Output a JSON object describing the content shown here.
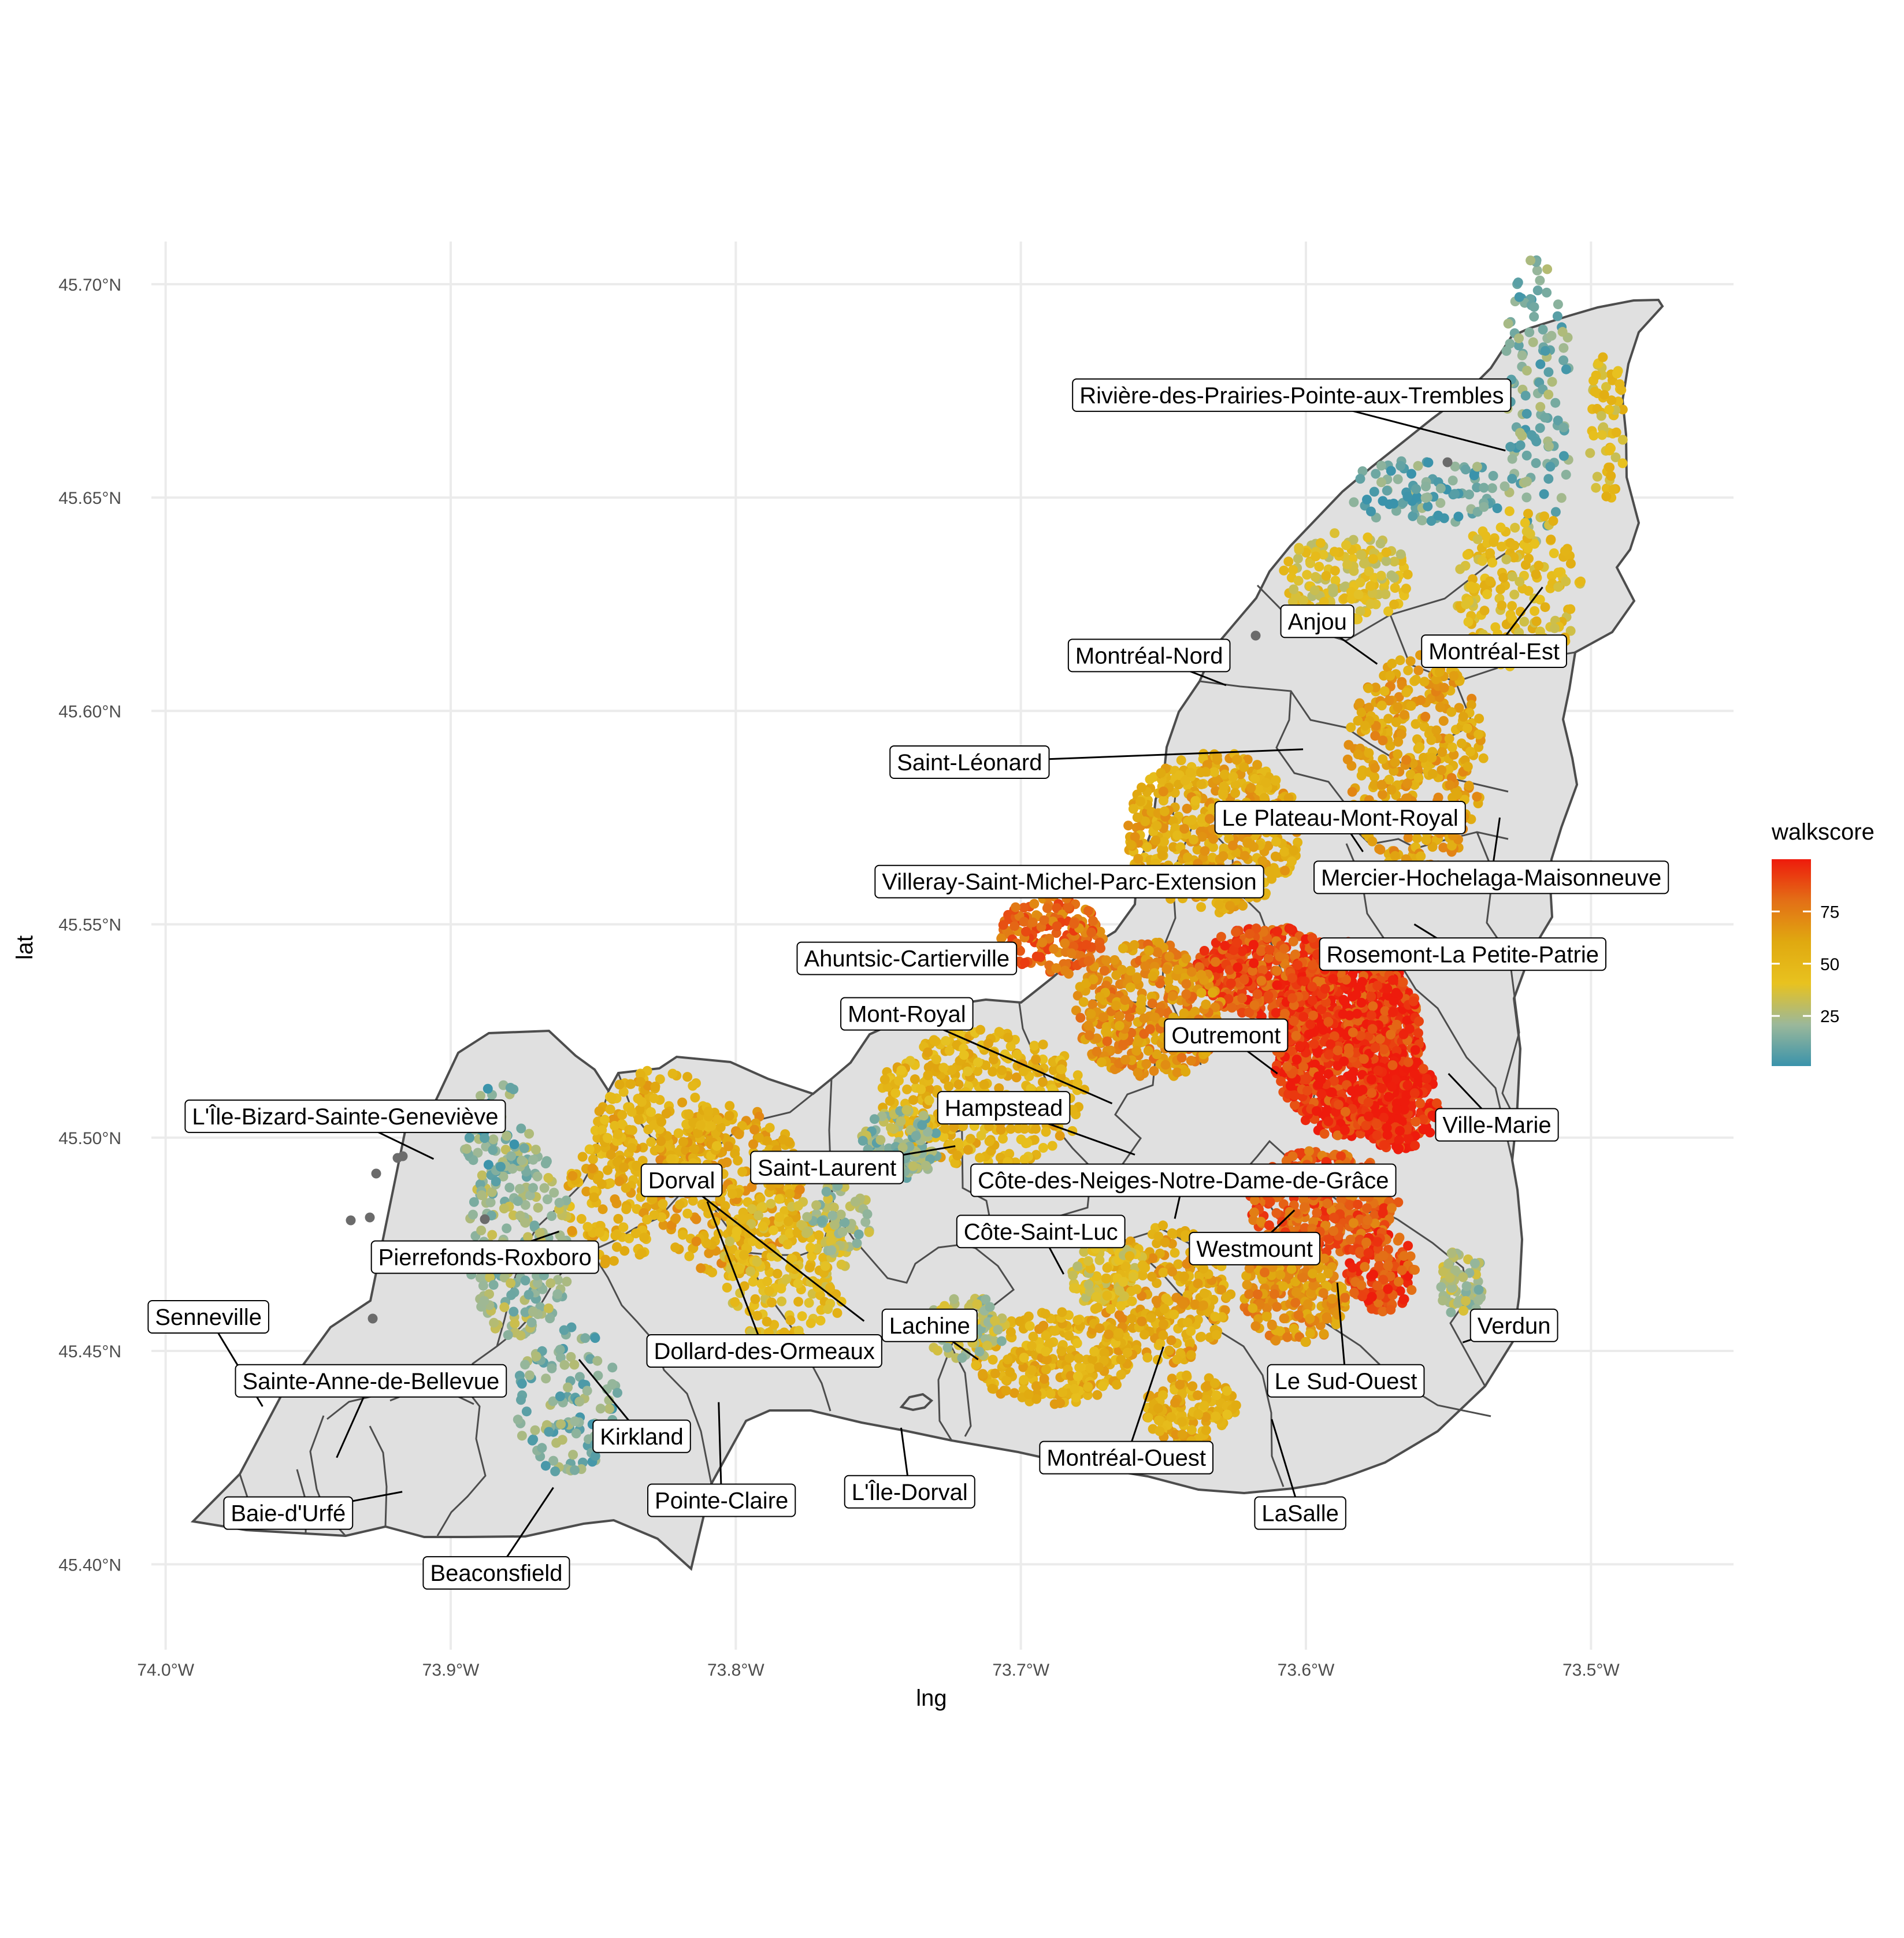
{
  "axes": {
    "xlabel": "lng",
    "ylabel": "lat",
    "xticks": [
      "74.0°W",
      "73.9°W",
      "73.8°W",
      "73.7°W",
      "73.6°W",
      "73.5°W"
    ],
    "xtick_values": [
      -74.0,
      -73.9,
      -73.8,
      -73.7,
      -73.6,
      -73.5
    ],
    "yticks": [
      "45.40°N",
      "45.45°N",
      "45.50°N",
      "45.55°N",
      "45.60°N",
      "45.65°N",
      "45.70°N"
    ],
    "ytick_values": [
      45.4,
      45.45,
      45.5,
      45.55,
      45.6,
      45.65,
      45.7
    ],
    "xlim": [
      -74.005,
      -73.45
    ],
    "ylim": [
      45.38,
      45.71
    ]
  },
  "legend": {
    "title": "walkscore",
    "ticks": [
      "25",
      "50",
      "75"
    ],
    "tick_values": [
      25,
      50,
      75
    ],
    "range": [
      1,
      100
    ],
    "colors": [
      "#3a93ab",
      "#9bb89a",
      "#e8c21f",
      "#e0a910",
      "#e36f16",
      "#ee1b0c"
    ]
  },
  "colors": {
    "island_fill": "#e0e0e0",
    "border": "#4d4d4d",
    "na_point": "#6b6b6b"
  },
  "labels": [
    {
      "name": "Rivière-des-Prairies-Pointe-aux-Trembles",
      "lng": -73.605,
      "lat": 45.674,
      "tlng": -73.53,
      "tlat": 45.661
    },
    {
      "name": "Anjou",
      "lng": -73.596,
      "lat": 45.621,
      "tlng": -73.575,
      "tlat": 45.611
    },
    {
      "name": "Montréal-Est",
      "lng": -73.534,
      "lat": 45.614,
      "tlng": -73.517,
      "tlat": 45.629
    },
    {
      "name": "Montréal-Nord",
      "lng": -73.655,
      "lat": 45.613,
      "tlng": -73.628,
      "tlat": 45.606
    },
    {
      "name": "Saint-Léonard",
      "lng": -73.718,
      "lat": 45.588,
      "tlng": -73.601,
      "tlat": 45.591
    },
    {
      "name": "Le Plateau-Mont-Royal",
      "lng": -73.588,
      "lat": 45.575,
      "tlng": -73.58,
      "tlat": 45.567
    },
    {
      "name": "Villeray-Saint-Michel-Parc-Extension",
      "lng": -73.683,
      "lat": 45.56,
      "tlng": -73.625,
      "tlat": 45.557
    },
    {
      "name": "Mercier-Hochelaga-Maisonneuve",
      "lng": -73.535,
      "lat": 45.561,
      "tlng": -73.532,
      "tlat": 45.575
    },
    {
      "name": "Ahuntsic-Cartierville",
      "lng": -73.74,
      "lat": 45.542,
      "tlng": -73.706,
      "tlat": 45.545
    },
    {
      "name": "Rosemont-La Petite-Patrie",
      "lng": -73.545,
      "lat": 45.543,
      "tlng": -73.562,
      "tlat": 45.55
    },
    {
      "name": "Mont-Royal",
      "lng": -73.74,
      "lat": 45.529,
      "tlng": -73.668,
      "tlat": 45.508
    },
    {
      "name": "Outremont",
      "lng": -73.628,
      "lat": 45.524,
      "tlng": -73.61,
      "tlat": 45.515
    },
    {
      "name": "Ville-Marie",
      "lng": -73.533,
      "lat": 45.503,
      "tlng": -73.55,
      "tlat": 45.515
    },
    {
      "name": "Hampstead",
      "lng": -73.706,
      "lat": 45.507,
      "tlng": -73.66,
      "tlat": 45.496
    },
    {
      "name": "L'Île-Bizard-Sainte-Geneviève",
      "lng": -73.937,
      "lat": 45.505,
      "tlng": -73.906,
      "tlat": 45.495
    },
    {
      "name": "Saint-Laurent",
      "lng": -73.768,
      "lat": 45.493,
      "tlng": -73.723,
      "tlat": 45.498
    },
    {
      "name": "Dorval",
      "lng": -73.819,
      "lat": 45.49,
      "tlng": -73.755,
      "tlat": 45.457
    },
    {
      "name": "Côte-des-Neiges-Notre-Dame-de-Grâce",
      "lng": -73.643,
      "lat": 45.49,
      "tlng": -73.646,
      "tlat": 45.481
    },
    {
      "name": "Côte-Saint-Luc",
      "lng": -73.693,
      "lat": 45.478,
      "tlng": -73.685,
      "tlat": 45.468
    },
    {
      "name": "Westmount",
      "lng": -73.618,
      "lat": 45.474,
      "tlng": -73.604,
      "tlat": 45.483
    },
    {
      "name": "Pierrefonds-Roxboro",
      "lng": -73.888,
      "lat": 45.472,
      "tlng": -73.862,
      "tlat": 45.478
    },
    {
      "name": "Senneville",
      "lng": -73.985,
      "lat": 45.458,
      "tlng": -73.966,
      "tlat": 45.437
    },
    {
      "name": "Dollard-des-Ormeaux",
      "lng": -73.79,
      "lat": 45.45,
      "tlng": -73.81,
      "tlat": 45.485
    },
    {
      "name": "Lachine",
      "lng": -73.732,
      "lat": 45.456,
      "tlng": -73.715,
      "tlat": 45.448
    },
    {
      "name": "Verdun",
      "lng": -73.527,
      "lat": 45.456,
      "tlng": -73.545,
      "tlat": 45.452
    },
    {
      "name": "Sainte-Anne-de-Bellevue",
      "lng": -73.928,
      "lat": 45.443,
      "tlng": -73.94,
      "tlat": 45.425
    },
    {
      "name": "Le Sud-Ouest",
      "lng": -73.586,
      "lat": 45.443,
      "tlng": -73.589,
      "tlat": 45.466
    },
    {
      "name": "Kirkland",
      "lng": -73.833,
      "lat": 45.43,
      "tlng": -73.855,
      "tlat": 45.448
    },
    {
      "name": "Montréal-Ouest",
      "lng": -73.663,
      "lat": 45.425,
      "tlng": -73.65,
      "tlat": 45.451
    },
    {
      "name": "L'Île-Dorval",
      "lng": -73.739,
      "lat": 45.417,
      "tlng": -73.742,
      "tlat": 45.432
    },
    {
      "name": "Pointe-Claire",
      "lng": -73.805,
      "lat": 45.415,
      "tlng": -73.806,
      "tlat": 45.438
    },
    {
      "name": "LaSalle",
      "lng": -73.602,
      "lat": 45.412,
      "tlng": -73.612,
      "tlat": 45.434
    },
    {
      "name": "Baie-d'Urfé",
      "lng": -73.957,
      "lat": 45.412,
      "tlng": -73.917,
      "tlat": 45.417
    },
    {
      "name": "Beaconsfield",
      "lng": -73.884,
      "lat": 45.398,
      "tlng": -73.864,
      "tlat": 45.418
    }
  ]
}
